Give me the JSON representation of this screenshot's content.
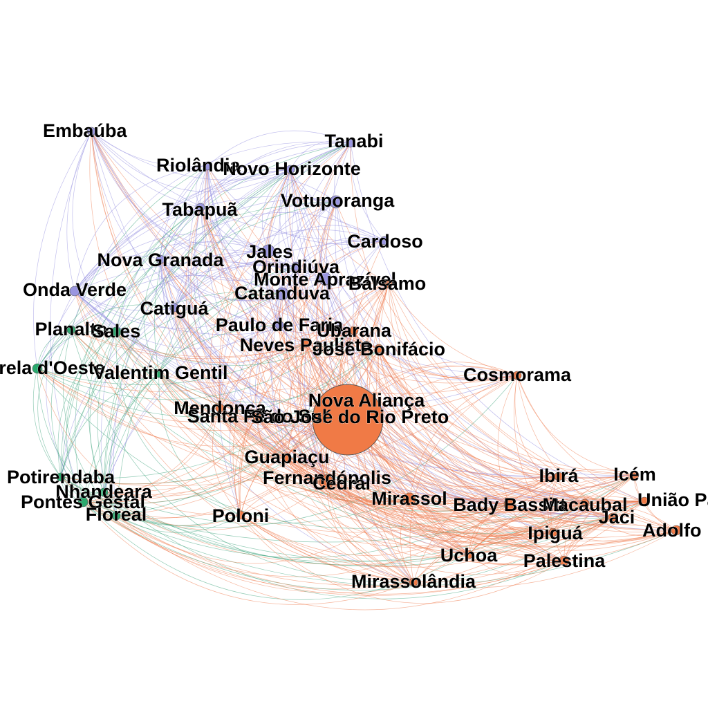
{
  "colors": {
    "purple": "#9a96e0",
    "green": "#2aaa6e",
    "orange": "#f07a46",
    "purple_edge": "#8e88de",
    "green_edge": "#3aa27a",
    "orange_edge": "#ee7a4c"
  },
  "nodes": [
    {
      "id": "embauba",
      "label": "Embaúba",
      "group": "purple"
    },
    {
      "id": "tanabi",
      "label": "Tanabi",
      "group": "purple"
    },
    {
      "id": "riolandia",
      "label": "Riolândia",
      "group": "purple"
    },
    {
      "id": "novo-horizonte",
      "label": "Novo Horizonte",
      "group": "purple"
    },
    {
      "id": "votuporanga",
      "label": "Votuporanga",
      "group": "purple"
    },
    {
      "id": "tabapua",
      "label": "Tabapuã",
      "group": "purple"
    },
    {
      "id": "cardoso",
      "label": "Cardoso",
      "group": "purple"
    },
    {
      "id": "jales",
      "label": "Jales",
      "group": "purple"
    },
    {
      "id": "nova-granada",
      "label": "Nova Granada",
      "group": "purple"
    },
    {
      "id": "orindiuva",
      "label": "Orindiúva",
      "group": "purple"
    },
    {
      "id": "monte-aprazivel",
      "label": "Monte Aprazível",
      "group": "purple"
    },
    {
      "id": "onda-verde",
      "label": "Onda Verde",
      "group": "purple"
    },
    {
      "id": "catanduva",
      "label": "Catanduva",
      "group": "purple"
    },
    {
      "id": "catigua",
      "label": "Catiguá",
      "group": "purple"
    },
    {
      "id": "paulo-de-faria",
      "label": "Paulo de Faria",
      "group": "purple"
    },
    {
      "id": "planalto",
      "label": "Planalto",
      "group": "green"
    },
    {
      "id": "sales",
      "label": "Sales",
      "group": "green"
    },
    {
      "id": "estrela-doeste",
      "label": "Estrela d'Oeste",
      "group": "green"
    },
    {
      "id": "valentim-gentil",
      "label": "Valentim Gentil",
      "group": "green"
    },
    {
      "id": "potirendaba",
      "label": "Potirendaba",
      "group": "green"
    },
    {
      "id": "nhandeara",
      "label": "Nhandeara",
      "group": "green"
    },
    {
      "id": "pontes-gestal",
      "label": "Pontes Gestal",
      "group": "green"
    },
    {
      "id": "floreal",
      "label": "Floreal",
      "group": "green"
    },
    {
      "id": "balsamo",
      "label": "Bálsamo",
      "group": "orange"
    },
    {
      "id": "ubarana",
      "label": "Ubarana",
      "group": "orange"
    },
    {
      "id": "neves-paulista",
      "label": "Neves Paulista",
      "group": "orange"
    },
    {
      "id": "jose-bonifacio",
      "label": "José Bonifácio",
      "group": "orange"
    },
    {
      "id": "cosmorama",
      "label": "Cosmorama",
      "group": "orange"
    },
    {
      "id": "nova-alianca",
      "label": "Nova Aliança",
      "group": "orange"
    },
    {
      "id": "mendonca",
      "label": "Mendonça",
      "group": "orange"
    },
    {
      "id": "santa-fe-do-sul",
      "label": "Santa Fé do Sul",
      "group": "orange"
    },
    {
      "id": "sao-jose-do-rio-preto",
      "label": "São José do Rio Preto",
      "group": "orange"
    },
    {
      "id": "guapiacu",
      "label": "Guapiaçu",
      "group": "orange"
    },
    {
      "id": "fernandopolis",
      "label": "Fernandópolis",
      "group": "orange"
    },
    {
      "id": "cedral",
      "label": "Cedral",
      "group": "orange"
    },
    {
      "id": "mirassol",
      "label": "Mirassol",
      "group": "orange"
    },
    {
      "id": "poloni",
      "label": "Poloni",
      "group": "orange"
    },
    {
      "id": "ibira",
      "label": "Ibirá",
      "group": "orange"
    },
    {
      "id": "icem",
      "label": "Icém",
      "group": "orange"
    },
    {
      "id": "bady-bassitt",
      "label": "Bady Bassitt",
      "group": "orange"
    },
    {
      "id": "macaubal",
      "label": "Macaubal",
      "group": "orange"
    },
    {
      "id": "uniao-paulista",
      "label": "União Paulista",
      "group": "orange"
    },
    {
      "id": "jaci",
      "label": "Jaci",
      "group": "orange"
    },
    {
      "id": "adolfo",
      "label": "Adolfo",
      "group": "orange"
    },
    {
      "id": "ipigua",
      "label": "Ipiguá",
      "group": "orange"
    },
    {
      "id": "uchoa",
      "label": "Uchoa",
      "group": "orange"
    },
    {
      "id": "palestina",
      "label": "Palestina",
      "group": "orange"
    },
    {
      "id": "mirassolandia",
      "label": "Mirassolândia",
      "group": "orange"
    }
  ]
}
